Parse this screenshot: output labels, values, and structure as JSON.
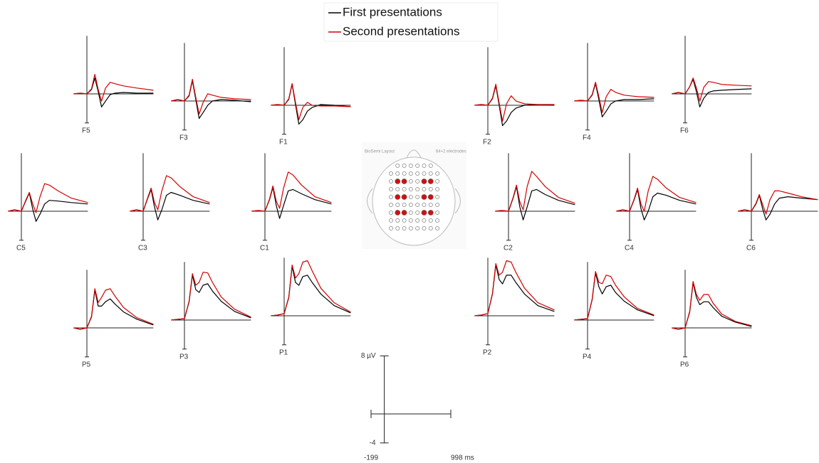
{
  "legend_series_note_free": null,
  "montage": {
    "title": "BioSemi Layout",
    "subtitle": "64+2 electrodes"
  },
  "scale": {
    "xlim": [
      -199,
      998
    ],
    "ylim": [
      -4,
      8
    ],
    "xticks": [
      -199,
      {
        "value": 998,
        "label": "998 ms"
      }
    ],
    "yticks": [
      -4,
      {
        "value": 8,
        "label": "8 µV"
      }
    ]
  },
  "chart_data": [
    {
      "type": "line",
      "title": "F5",
      "x": [
        -199,
        -100,
        0,
        70,
        120,
        170,
        220,
        280,
        350,
        420,
        550,
        750,
        998
      ],
      "series": [
        {
          "name": "First presentations",
          "color": "#000000",
          "values": [
            0,
            0.1,
            0,
            0.6,
            2.2,
            0.3,
            -1.8,
            -1.0,
            -0.1,
            0.1,
            0.2,
            0.1,
            0.1
          ]
        },
        {
          "name": "Second presentations",
          "color": "#d40000",
          "values": [
            0,
            0.1,
            0,
            0.7,
            2.7,
            0.6,
            -1.0,
            0.8,
            1.6,
            1.4,
            1.1,
            0.8,
            0.5
          ]
        }
      ]
    },
    {
      "type": "line",
      "title": "F3",
      "x": [
        -199,
        -100,
        0,
        70,
        120,
        170,
        220,
        280,
        350,
        420,
        550,
        750,
        998
      ],
      "series": [
        {
          "name": "First presentations",
          "color": "#000000",
          "values": [
            0,
            0.2,
            0,
            0.7,
            2.8,
            0.2,
            -2.4,
            -1.6,
            -0.6,
            0.0,
            0.2,
            0.1,
            -0.1
          ]
        },
        {
          "name": "Second presentations",
          "color": "#d40000",
          "values": [
            0,
            0.2,
            0,
            0.8,
            3.0,
            0.5,
            -1.8,
            -0.2,
            1.0,
            0.8,
            0.5,
            0.3,
            0.2
          ]
        }
      ]
    },
    {
      "type": "line",
      "title": "F1",
      "x": [
        -199,
        -100,
        0,
        70,
        120,
        170,
        220,
        280,
        350,
        420,
        550,
        750,
        998
      ],
      "series": [
        {
          "name": "First presentations",
          "color": "#000000",
          "values": [
            0,
            0.1,
            0,
            0.8,
            2.9,
            0.1,
            -2.6,
            -2.0,
            -0.8,
            -0.3,
            0.1,
            0,
            -0.2
          ]
        },
        {
          "name": "Second presentations",
          "color": "#d40000",
          "values": [
            0,
            0.1,
            0,
            0.9,
            3.0,
            0.4,
            -2.0,
            -0.3,
            0.4,
            0.0,
            -0.1,
            -0.1,
            -0.2
          ]
        }
      ]
    },
    {
      "type": "line",
      "title": "F2",
      "x": [
        -199,
        -100,
        0,
        70,
        120,
        170,
        220,
        280,
        350,
        420,
        550,
        750,
        998
      ],
      "series": [
        {
          "name": "First presentations",
          "color": "#000000",
          "values": [
            0,
            0.1,
            0,
            0.9,
            2.7,
            0.0,
            -2.8,
            -2.2,
            -1.0,
            -0.4,
            0.0,
            0.1,
            0.0
          ]
        },
        {
          "name": "Second presentations",
          "color": "#d40000",
          "values": [
            0,
            0.1,
            0,
            1.0,
            2.9,
            0.3,
            -2.2,
            0.2,
            1.3,
            0.6,
            0.2,
            0.1,
            0.1
          ]
        }
      ]
    },
    {
      "type": "line",
      "title": "F4",
      "x": [
        -199,
        -100,
        0,
        70,
        120,
        170,
        220,
        280,
        350,
        420,
        550,
        750,
        998
      ],
      "series": [
        {
          "name": "First presentations",
          "color": "#000000",
          "values": [
            0,
            0.1,
            0,
            0.8,
            2.4,
            0.2,
            -2.2,
            -1.4,
            -0.4,
            0.0,
            0.2,
            0.2,
            0.3
          ]
        },
        {
          "name": "Second presentations",
          "color": "#d40000",
          "values": [
            0,
            0.1,
            0,
            0.9,
            2.6,
            0.6,
            -1.6,
            0.6,
            1.6,
            1.2,
            0.8,
            0.6,
            0.5
          ]
        }
      ]
    },
    {
      "type": "line",
      "title": "F6",
      "x": [
        -199,
        -100,
        0,
        70,
        120,
        170,
        220,
        280,
        350,
        420,
        550,
        750,
        998
      ],
      "series": [
        {
          "name": "First presentations",
          "color": "#000000",
          "values": [
            0,
            0.2,
            0,
            1.0,
            2.0,
            0.3,
            -1.8,
            -0.6,
            0.2,
            0.4,
            0.5,
            0.6,
            0.7
          ]
        },
        {
          "name": "Second presentations",
          "color": "#d40000",
          "values": [
            0,
            0.2,
            0,
            1.0,
            2.2,
            0.8,
            -1.0,
            0.9,
            1.7,
            1.6,
            1.3,
            1.2,
            1.1
          ]
        }
      ]
    },
    {
      "type": "line",
      "title": "C5",
      "x": [
        -199,
        -100,
        0,
        70,
        120,
        170,
        220,
        280,
        350,
        420,
        550,
        750,
        998
      ],
      "series": [
        {
          "name": "First presentations",
          "color": "#000000",
          "values": [
            0,
            0.2,
            0,
            1.5,
            2.5,
            0.3,
            -1.4,
            -0.4,
            1.0,
            1.5,
            1.4,
            1.2,
            1.0
          ]
        },
        {
          "name": "Second presentations",
          "color": "#d40000",
          "values": [
            0,
            0.2,
            0,
            1.6,
            2.6,
            1.0,
            -0.2,
            2.0,
            3.8,
            3.6,
            2.8,
            1.8,
            1.2
          ]
        }
      ]
    },
    {
      "type": "line",
      "title": "C3",
      "x": [
        -199,
        -100,
        0,
        70,
        120,
        170,
        220,
        280,
        350,
        420,
        550,
        750,
        998
      ],
      "series": [
        {
          "name": "First presentations",
          "color": "#000000",
          "values": [
            0,
            0.2,
            0,
            1.8,
            3.0,
            0.6,
            -1.2,
            0.2,
            2.2,
            2.6,
            2.2,
            1.5,
            1.0
          ]
        },
        {
          "name": "Second presentations",
          "color": "#d40000",
          "values": [
            0,
            0.2,
            0,
            1.9,
            3.2,
            1.2,
            0.2,
            2.8,
            4.9,
            4.6,
            3.4,
            2.0,
            1.2
          ]
        }
      ]
    },
    {
      "type": "line",
      "title": "C1",
      "x": [
        -199,
        -100,
        0,
        70,
        120,
        170,
        220,
        280,
        350,
        420,
        550,
        750,
        998
      ],
      "series": [
        {
          "name": "First presentations",
          "color": "#000000",
          "values": [
            0,
            0.1,
            0,
            1.6,
            3.3,
            0.8,
            -1.0,
            0.8,
            2.8,
            3.0,
            2.4,
            1.6,
            1.0
          ]
        },
        {
          "name": "Second presentations",
          "color": "#d40000",
          "values": [
            0,
            0.1,
            0,
            1.7,
            3.5,
            1.4,
            0.4,
            3.2,
            5.4,
            5.0,
            3.6,
            2.0,
            1.2
          ]
        }
      ]
    },
    {
      "type": "line",
      "title": "C2",
      "x": [
        -199,
        -100,
        0,
        70,
        120,
        170,
        220,
        280,
        350,
        420,
        550,
        750,
        998
      ],
      "series": [
        {
          "name": "First presentations",
          "color": "#000000",
          "values": [
            0,
            0.1,
            0,
            1.8,
            3.4,
            0.6,
            -1.2,
            0.6,
            2.8,
            3.0,
            2.3,
            1.5,
            0.9
          ]
        },
        {
          "name": "Second presentations",
          "color": "#d40000",
          "values": [
            0,
            0.1,
            0,
            1.9,
            3.6,
            1.3,
            0.2,
            3.4,
            5.5,
            4.8,
            3.4,
            1.9,
            1.1
          ]
        }
      ]
    },
    {
      "type": "line",
      "title": "C4",
      "x": [
        -199,
        -100,
        0,
        70,
        120,
        170,
        220,
        280,
        350,
        420,
        550,
        750,
        998
      ],
      "series": [
        {
          "name": "First presentations",
          "color": "#000000",
          "values": [
            0,
            0.2,
            0,
            1.6,
            3.0,
            0.4,
            -1.2,
            0.0,
            2.0,
            2.5,
            2.2,
            1.5,
            1.0
          ]
        },
        {
          "name": "Second presentations",
          "color": "#d40000",
          "values": [
            0,
            0.2,
            0,
            1.7,
            3.2,
            1.0,
            0.0,
            2.8,
            4.8,
            4.4,
            3.2,
            1.9,
            1.2
          ]
        }
      ]
    },
    {
      "type": "line",
      "title": "C6",
      "x": [
        -199,
        -100,
        0,
        70,
        120,
        170,
        220,
        280,
        350,
        420,
        550,
        750,
        998
      ],
      "series": [
        {
          "name": "First presentations",
          "color": "#000000",
          "values": [
            0,
            0.2,
            0,
            1.0,
            2.2,
            0.3,
            -1.2,
            -0.4,
            1.0,
            1.8,
            2.0,
            1.8,
            1.6
          ]
        },
        {
          "name": "Second presentations",
          "color": "#d40000",
          "values": [
            0,
            0.2,
            0,
            1.1,
            2.3,
            0.9,
            -0.4,
            1.6,
            2.8,
            2.8,
            2.5,
            2.0,
            1.6
          ]
        }
      ]
    },
    {
      "type": "line",
      "title": "P5",
      "x": [
        -199,
        -100,
        0,
        70,
        120,
        170,
        220,
        280,
        350,
        420,
        550,
        750,
        998
      ],
      "series": [
        {
          "name": "First presentations",
          "color": "#000000",
          "values": [
            0,
            -0.2,
            0,
            1.5,
            5.2,
            3.0,
            3.0,
            3.6,
            4.0,
            3.3,
            2.2,
            1.2,
            0.4
          ]
        },
        {
          "name": "Second presentations",
          "color": "#d40000",
          "values": [
            0,
            -0.2,
            0,
            1.6,
            5.4,
            3.5,
            4.2,
            5.2,
            5.4,
            4.4,
            2.8,
            1.4,
            0.5
          ]
        }
      ]
    },
    {
      "type": "line",
      "title": "P3",
      "x": [
        -199,
        -100,
        0,
        70,
        120,
        170,
        220,
        280,
        350,
        420,
        550,
        750,
        998
      ],
      "series": [
        {
          "name": "First presentations",
          "color": "#000000",
          "values": [
            0,
            0.1,
            0.2,
            2.5,
            6.2,
            4.2,
            3.8,
            4.8,
            5.0,
            4.0,
            2.6,
            1.2,
            0.3
          ]
        },
        {
          "name": "Second presentations",
          "color": "#d40000",
          "values": [
            0,
            0.1,
            0.2,
            2.6,
            6.4,
            4.8,
            5.2,
            6.6,
            6.5,
            5.2,
            3.2,
            1.5,
            0.4
          ]
        }
      ]
    },
    {
      "type": "line",
      "title": "P1",
      "x": [
        -199,
        -100,
        0,
        70,
        120,
        170,
        220,
        280,
        350,
        420,
        550,
        750,
        998
      ],
      "series": [
        {
          "name": "First presentations",
          "color": "#000000",
          "values": [
            0,
            0.1,
            0.3,
            2.5,
            6.8,
            4.6,
            4.2,
            5.4,
            5.6,
            4.6,
            3.0,
            1.4,
            0.4
          ]
        },
        {
          "name": "Second presentations",
          "color": "#d40000",
          "values": [
            0,
            0.1,
            0.3,
            2.6,
            7.0,
            5.2,
            5.8,
            7.4,
            7.6,
            6.2,
            3.8,
            1.8,
            0.5
          ]
        }
      ]
    },
    {
      "type": "line",
      "title": "P2",
      "x": [
        -199,
        -100,
        0,
        70,
        120,
        170,
        220,
        280,
        350,
        420,
        550,
        750,
        998
      ],
      "series": [
        {
          "name": "First presentations",
          "color": "#000000",
          "values": [
            0,
            0.1,
            0.3,
            3.0,
            7.0,
            5.0,
            4.4,
            5.6,
            5.6,
            4.6,
            3.0,
            1.4,
            0.6
          ]
        },
        {
          "name": "Second presentations",
          "color": "#d40000",
          "values": [
            0,
            0.1,
            0.3,
            3.1,
            7.2,
            5.6,
            6.0,
            7.6,
            7.4,
            6.0,
            3.8,
            1.8,
            0.8
          ]
        }
      ]
    },
    {
      "type": "line",
      "title": "P4",
      "x": [
        -199,
        -100,
        0,
        70,
        120,
        170,
        220,
        280,
        350,
        420,
        550,
        750,
        998
      ],
      "series": [
        {
          "name": "First presentations",
          "color": "#000000",
          "values": [
            0,
            0.1,
            0.2,
            2.8,
            6.5,
            4.6,
            3.6,
            4.6,
            4.8,
            3.8,
            2.6,
            1.4,
            0.6
          ]
        },
        {
          "name": "Second presentations",
          "color": "#d40000",
          "values": [
            0,
            0.1,
            0.2,
            2.9,
            6.7,
            5.2,
            5.0,
            6.2,
            6.0,
            4.8,
            3.2,
            1.6,
            0.7
          ]
        }
      ]
    },
    {
      "type": "line",
      "title": "P6",
      "x": [
        -199,
        -100,
        0,
        70,
        120,
        170,
        220,
        280,
        350,
        420,
        550,
        750,
        998
      ],
      "series": [
        {
          "name": "First presentations",
          "color": "#000000",
          "values": [
            0,
            -0.2,
            0,
            2.2,
            6.2,
            4.2,
            3.2,
            3.6,
            3.6,
            2.8,
            1.6,
            0.8,
            0.2
          ]
        },
        {
          "name": "Second presentations",
          "color": "#d40000",
          "values": [
            0,
            -0.2,
            0,
            2.3,
            6.4,
            4.6,
            3.8,
            4.6,
            4.6,
            3.4,
            1.9,
            0.9,
            0.3
          ]
        }
      ]
    }
  ]
}
